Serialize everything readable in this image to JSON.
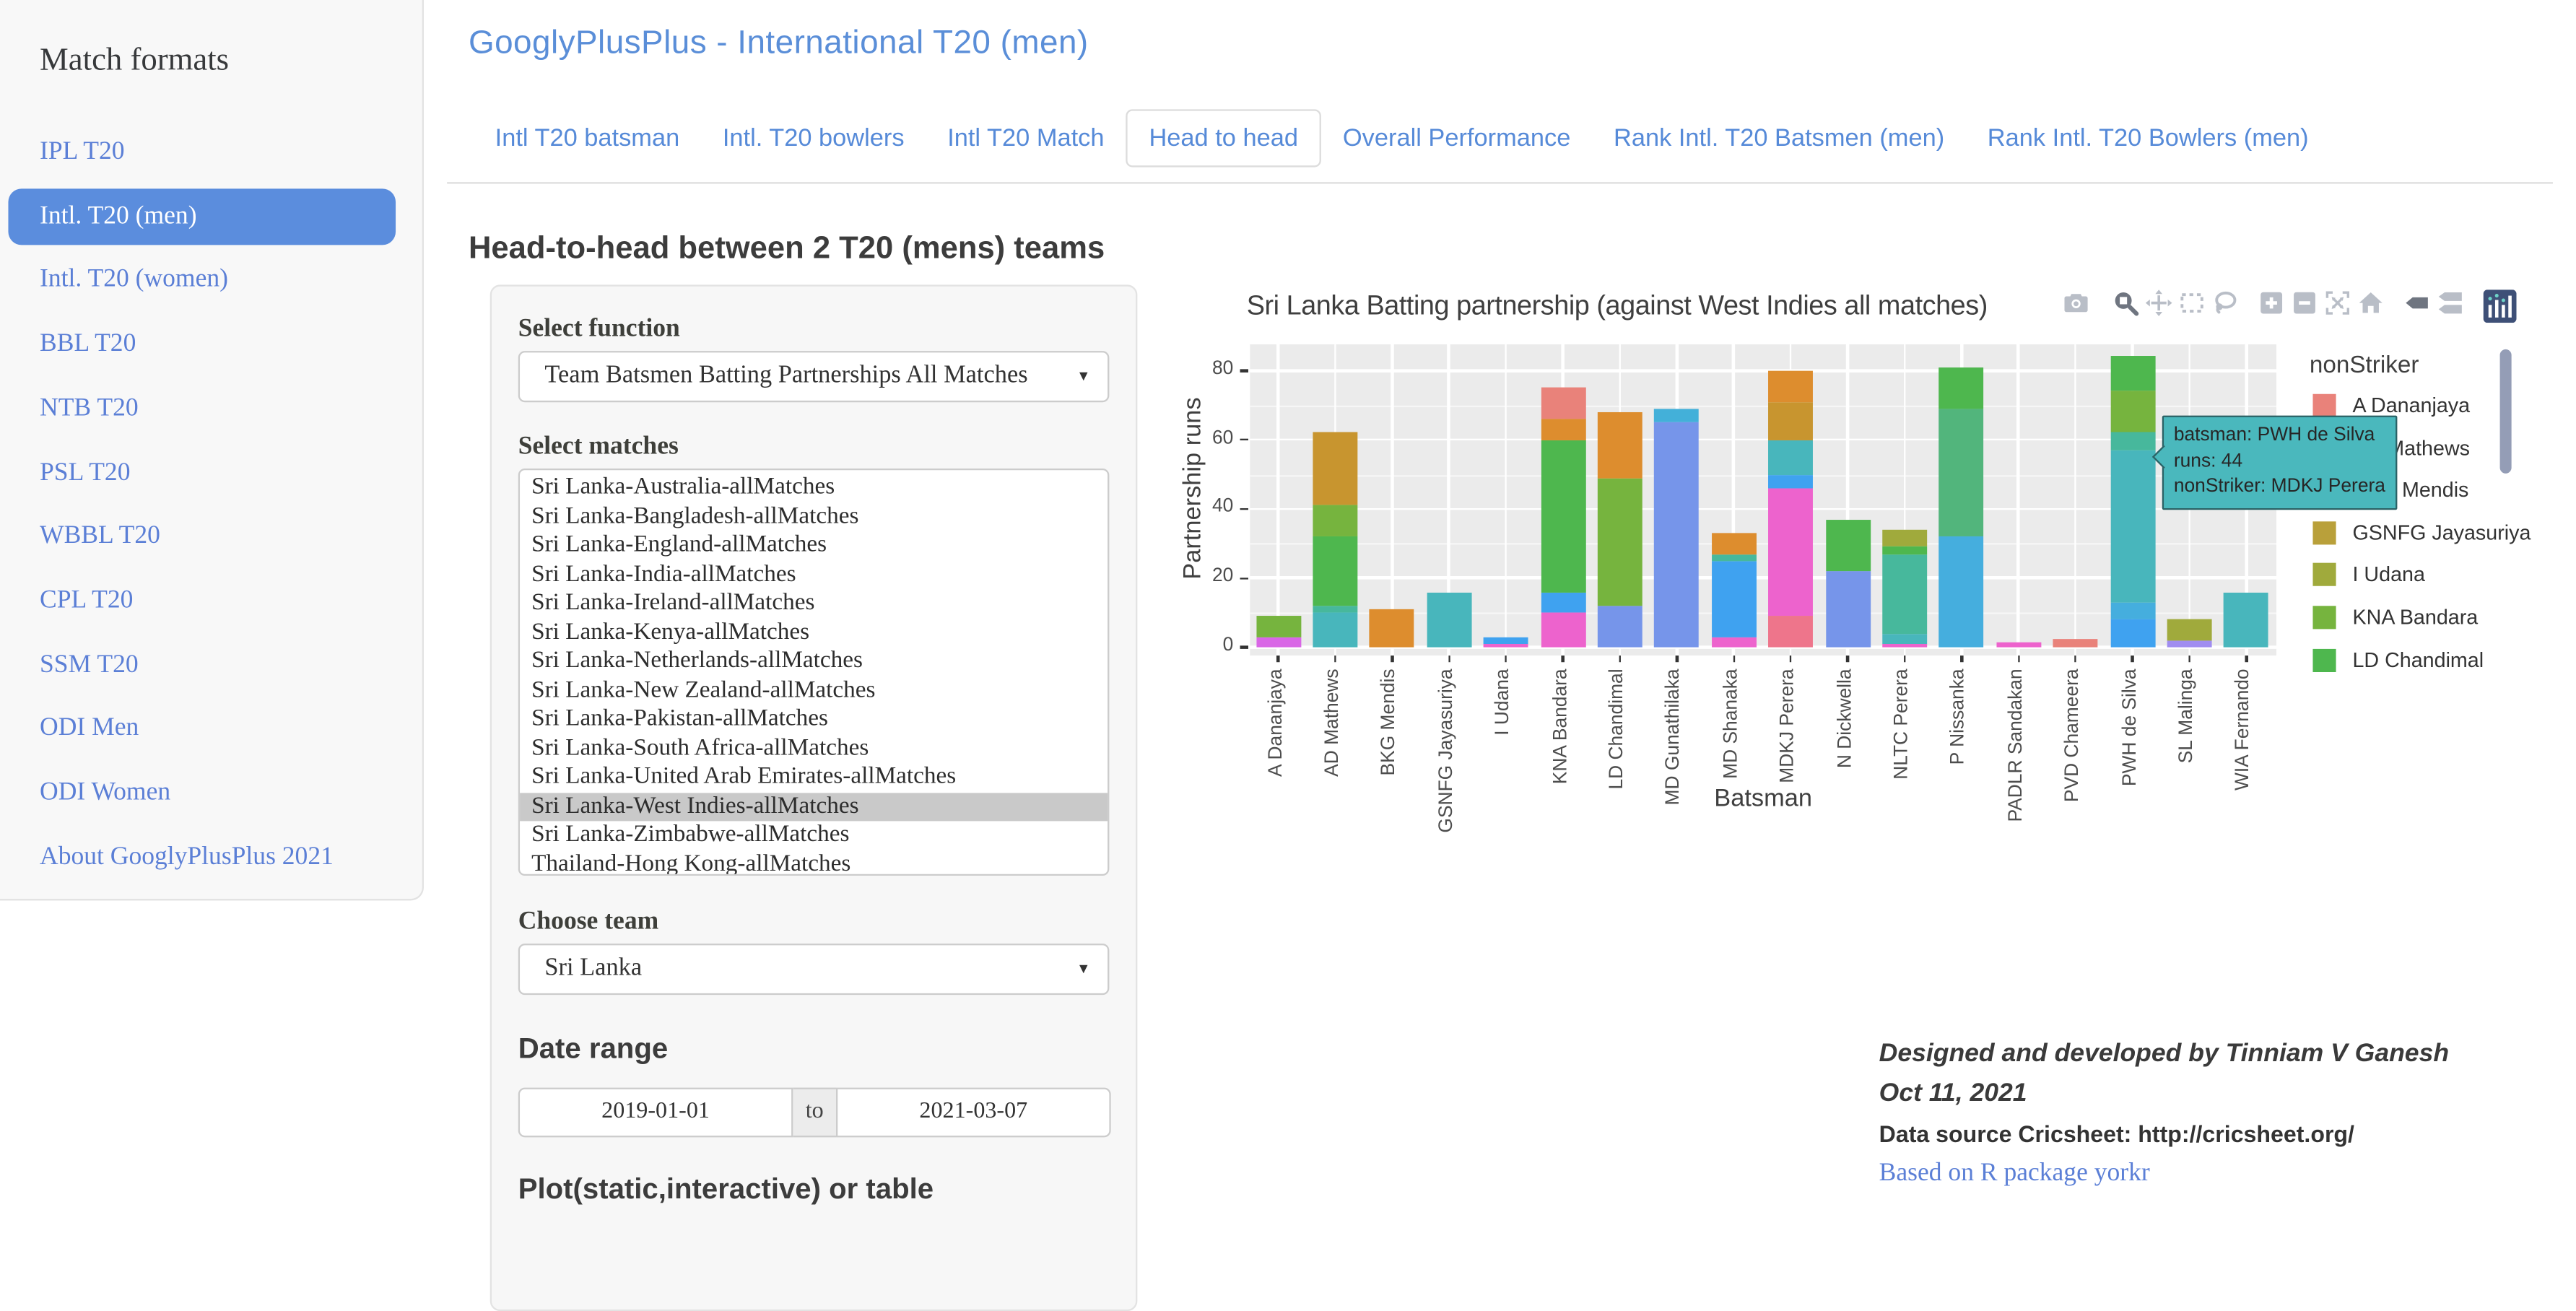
{
  "colors": {
    "link_blue": "#568ad8",
    "active_nav_bg": "#5b8ddd",
    "selected_match_bg": "#c9c9c9",
    "plot_bg": "#ebebeb",
    "tooltip_bg": "#4ab8bd",
    "tooltip_border": "#2a6266"
  },
  "sidebar": {
    "title": "Match formats",
    "items": [
      {
        "label": "IPL T20",
        "active": false
      },
      {
        "label": "Intl. T20 (men)",
        "active": true
      },
      {
        "label": "Intl. T20 (women)",
        "active": false
      },
      {
        "label": "BBL T20",
        "active": false
      },
      {
        "label": "NTB T20",
        "active": false
      },
      {
        "label": "PSL T20",
        "active": false
      },
      {
        "label": "WBBL T20",
        "active": false
      },
      {
        "label": "CPL T20",
        "active": false
      },
      {
        "label": "SSM T20",
        "active": false
      },
      {
        "label": "ODI Men",
        "active": false
      },
      {
        "label": "ODI Women",
        "active": false
      },
      {
        "label": "About GooglyPlusPlus 2021",
        "active": false
      }
    ]
  },
  "header": {
    "title": "GooglyPlusPlus - International T20 (men)"
  },
  "tabs": [
    {
      "label": "Intl T20 batsman",
      "active": false
    },
    {
      "label": "Intl. T20 bowlers",
      "active": false
    },
    {
      "label": "Intl T20 Match",
      "active": false
    },
    {
      "label": "Head to head",
      "active": true
    },
    {
      "label": "Overall Performance",
      "active": false
    },
    {
      "label": "Rank Intl. T20 Batsmen (men)",
      "active": false
    },
    {
      "label": "Rank Intl. T20 Bowlers (men)",
      "active": false
    }
  ],
  "main": {
    "heading": "Head-to-head between 2 T20 (mens) teams"
  },
  "controls": {
    "select_function_label": "Select function",
    "select_function_value": "Team Batsmen Batting Partnerships All Matches",
    "select_matches_label": "Select matches",
    "matches": [
      "Sri Lanka-Australia-allMatches",
      "Sri Lanka-Bangladesh-allMatches",
      "Sri Lanka-England-allMatches",
      "Sri Lanka-India-allMatches",
      "Sri Lanka-Ireland-allMatches",
      "Sri Lanka-Kenya-allMatches",
      "Sri Lanka-Netherlands-allMatches",
      "Sri Lanka-New Zealand-allMatches",
      "Sri Lanka-Pakistan-allMatches",
      "Sri Lanka-South Africa-allMatches",
      "Sri Lanka-United Arab Emirates-allMatches",
      "Sri Lanka-West Indies-allMatches",
      "Sri Lanka-Zimbabwe-allMatches",
      "Thailand-Hong Kong-allMatches"
    ],
    "selected_match": "Sri Lanka-West Indies-allMatches",
    "choose_team_label": "Choose team",
    "choose_team_value": "Sri Lanka",
    "date_range_label": "Date range",
    "date_from": "2019-01-01",
    "date_separator": "to",
    "date_to": "2021-03-07",
    "plot_or_table_label": "Plot(static,interactive) or table"
  },
  "chart_data": {
    "type": "bar",
    "stacked": true,
    "title": "Sri Lanka Batting partnership (against West Indies all matches)",
    "xlabel": "Batsman",
    "ylabel": "Partnership runs",
    "ylim": [
      0,
      88
    ],
    "yticks": [
      0,
      20,
      40,
      60,
      80
    ],
    "grid": true,
    "legend_position": "right",
    "categories": [
      "A Dananjaya",
      "AD Mathews",
      "BKG Mendis",
      "GSNFG Jayasuriya",
      "I Udana",
      "KNA Bandara",
      "LD Chandimal",
      "MD Gunathilaka",
      "MD Shanaka",
      "MDKJ Perera",
      "N Dickwella",
      "NLTC Perera",
      "P Nissanka",
      "PADLR Sandakan",
      "PVD Chameera",
      "PWH de Silva",
      "SL Malinga",
      "WIA Fernando"
    ],
    "bars": [
      {
        "batsman": "A Dananjaya",
        "total": 9,
        "segments": [
          {
            "color": "#d966e6",
            "runs": 3
          },
          {
            "color": "#76b43e",
            "runs": 6
          }
        ]
      },
      {
        "batsman": "AD Mathews",
        "total": 62,
        "segments": [
          {
            "color": "#48b6bc",
            "runs": 10
          },
          {
            "color": "#47b89c",
            "runs": 2
          },
          {
            "color": "#4eb74e",
            "runs": 20
          },
          {
            "color": "#76b43e",
            "runs": 9
          },
          {
            "color": "#c8952f",
            "runs": 21
          }
        ]
      },
      {
        "batsman": "BKG Mendis",
        "total": 11,
        "segments": [
          {
            "color": "#dd8d2e",
            "runs": 11
          }
        ]
      },
      {
        "batsman": "GSNFG Jayasuriya",
        "total": 16,
        "segments": [
          {
            "color": "#48b6bc",
            "runs": 16
          }
        ]
      },
      {
        "batsman": "I Udana",
        "total": 3,
        "segments": [
          {
            "color": "#ed63cd",
            "runs": 1
          },
          {
            "color": "#3fa2f0",
            "runs": 2
          }
        ]
      },
      {
        "batsman": "KNA Bandara",
        "total": 75,
        "segments": [
          {
            "color": "#ed63cd",
            "runs": 10
          },
          {
            "color": "#3fa2f0",
            "runs": 6
          },
          {
            "color": "#4eb74e",
            "runs": 44
          },
          {
            "color": "#dd8d2e",
            "runs": 6
          },
          {
            "color": "#e9827a",
            "runs": 9
          }
        ]
      },
      {
        "batsman": "LD Chandimal",
        "total": 68,
        "segments": [
          {
            "color": "#7695ea",
            "runs": 12
          },
          {
            "color": "#76b43e",
            "runs": 37
          },
          {
            "color": "#dd8d2e",
            "runs": 19
          }
        ]
      },
      {
        "batsman": "MD Gunathilaka",
        "total": 69,
        "segments": [
          {
            "color": "#7695ea",
            "runs": 65
          },
          {
            "color": "#43b0d9",
            "runs": 4
          }
        ]
      },
      {
        "batsman": "MD Shanaka",
        "total": 33,
        "segments": [
          {
            "color": "#ed63cd",
            "runs": 3
          },
          {
            "color": "#3fa2f0",
            "runs": 22
          },
          {
            "color": "#47b89c",
            "runs": 2
          },
          {
            "color": "#dd8d2e",
            "runs": 6
          }
        ]
      },
      {
        "batsman": "MDKJ Perera",
        "total": 80,
        "segments": [
          {
            "color": "#ee758b",
            "runs": 9
          },
          {
            "color": "#ed63cd",
            "runs": 37
          },
          {
            "color": "#3fa2f0",
            "runs": 4
          },
          {
            "color": "#48b6bc",
            "runs": 10
          },
          {
            "color": "#c8952f",
            "runs": 11
          },
          {
            "color": "#dd8d2e",
            "runs": 9
          }
        ]
      },
      {
        "batsman": "N Dickwella",
        "total": 37,
        "segments": [
          {
            "color": "#7695ea",
            "runs": 22
          },
          {
            "color": "#4eb74e",
            "runs": 15
          }
        ]
      },
      {
        "batsman": "NLTC Perera",
        "total": 34,
        "segments": [
          {
            "color": "#ed63cd",
            "runs": 1
          },
          {
            "color": "#48b6bc",
            "runs": 3
          },
          {
            "color": "#47b89c",
            "runs": 23
          },
          {
            "color": "#4eb74e",
            "runs": 2
          },
          {
            "color": "#a0aa3c",
            "runs": 5
          }
        ]
      },
      {
        "batsman": "P Nissanka",
        "total": 81,
        "segments": [
          {
            "color": "#45aede",
            "runs": 32
          },
          {
            "color": "#52b57c",
            "runs": 37
          },
          {
            "color": "#4eb74e",
            "runs": 12
          }
        ]
      },
      {
        "batsman": "PADLR Sandakan",
        "total": 1.5,
        "segments": [
          {
            "color": "#ed63cd",
            "runs": 1.5
          }
        ]
      },
      {
        "batsman": "PVD Chameera",
        "total": 2.5,
        "segments": [
          {
            "color": "#e9827a",
            "runs": 2.5
          }
        ]
      },
      {
        "batsman": "PWH de Silva",
        "total": 84,
        "segments": [
          {
            "color": "#3fa2f0",
            "runs": 8
          },
          {
            "color": "#45aede",
            "runs": 5
          },
          {
            "color": "#48b6bc",
            "runs": 44
          },
          {
            "color": "#47b89c",
            "runs": 5
          },
          {
            "color": "#76b43e",
            "runs": 12
          },
          {
            "color": "#4eb74e",
            "runs": 10
          }
        ]
      },
      {
        "batsman": "SL Malinga",
        "total": 8,
        "segments": [
          {
            "color": "#a08df0",
            "runs": 2
          },
          {
            "color": "#a0aa3c",
            "runs": 6
          }
        ]
      },
      {
        "batsman": "WIA Fernando",
        "total": 16,
        "segments": [
          {
            "color": "#48b6bc",
            "runs": 16
          }
        ]
      }
    ],
    "legend": {
      "title": "nonStriker",
      "entries": [
        {
          "label": "A Dananjaya",
          "color": "#e9827a"
        },
        {
          "label": "AD Mathews",
          "color": "#dd8d2e"
        },
        {
          "label": "BKG Mendis",
          "color": "#c8952f"
        },
        {
          "label": "GSNFG Jayasuriya",
          "color": "#b9a03a"
        },
        {
          "label": "I Udana",
          "color": "#a0aa3c"
        },
        {
          "label": "KNA Bandara",
          "color": "#76b43e"
        },
        {
          "label": "LD Chandimal",
          "color": "#4eb74e"
        }
      ]
    },
    "tooltip": {
      "lines": [
        "batsman: PWH de Silva",
        "runs: 44",
        "nonStriker: MDKJ Perera"
      ]
    },
    "modebar": [
      "camera",
      "zoom",
      "pan",
      "box-select",
      "lasso-select",
      "zoom-in",
      "zoom-out",
      "autoscale",
      "reset-axes-home",
      "toggle-hover-closest",
      "toggle-hover-compare",
      "plotly-logo"
    ]
  },
  "footer": {
    "line1": "Designed and developed by Tinniam V Ganesh",
    "line2": "Oct 11, 2021",
    "line3": "Data source Cricsheet: http://cricsheet.org/",
    "line4": "Based on R package yorkr"
  }
}
